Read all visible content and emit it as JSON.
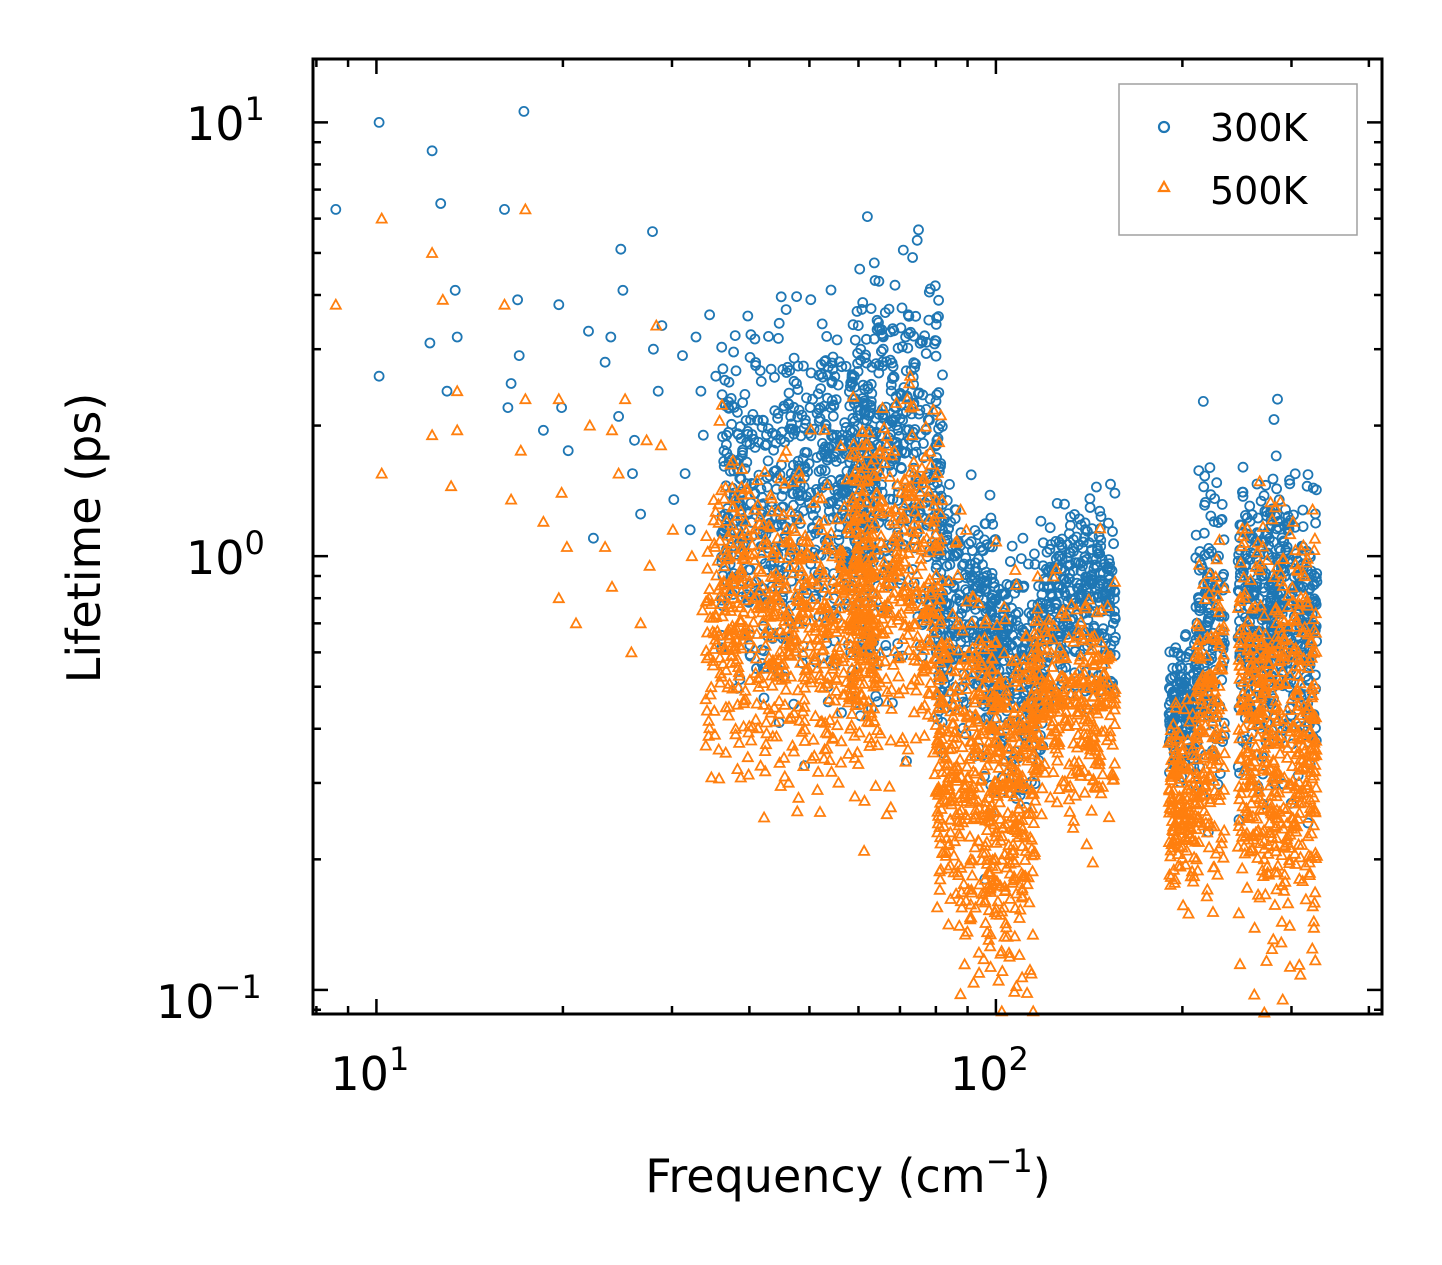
{
  "chart_data": {
    "type": "scatter",
    "title": "",
    "xlabel": "Frequency (cm",
    "xlabel_sup": "−1",
    "xlabel_end": ")",
    "ylabel": "Lifetime (ps)",
    "xscale": "log",
    "yscale": "log",
    "xlim": [
      7.9,
      420
    ],
    "ylim": [
      0.088,
      14
    ],
    "x_ticks": [
      {
        "value": 10,
        "base": "10",
        "exp": "1"
      },
      {
        "value": 100,
        "base": "10",
        "exp": "2"
      }
    ],
    "y_ticks": [
      {
        "value": 0.1,
        "base": "10",
        "exp": "−1"
      },
      {
        "value": 1,
        "base": "10",
        "exp": "0"
      },
      {
        "value": 10,
        "base": "10",
        "exp": "1"
      }
    ],
    "legend_position": "top-right",
    "series": [
      {
        "name": "300K",
        "color": "#1f77b4",
        "marker": "circle",
        "points": [
          [
            8.6,
            6.3
          ],
          [
            10.1,
            10.0
          ],
          [
            10.1,
            2.6
          ],
          [
            12.3,
            8.6
          ],
          [
            12.7,
            6.5
          ],
          [
            13.4,
            4.1
          ],
          [
            12.2,
            3.1
          ],
          [
            13.0,
            2.4
          ],
          [
            13.5,
            3.2
          ],
          [
            16.1,
            6.3
          ],
          [
            17.3,
            10.6
          ],
          [
            16.9,
            3.9
          ],
          [
            17.0,
            2.9
          ],
          [
            16.5,
            2.5
          ],
          [
            16.3,
            2.2
          ],
          [
            19.7,
            3.8
          ],
          [
            19.9,
            2.2
          ],
          [
            20.4,
            1.75
          ],
          [
            18.6,
            1.95
          ],
          [
            22.0,
            3.3
          ],
          [
            23.4,
            2.8
          ],
          [
            23.9,
            3.2
          ],
          [
            24.8,
            5.1
          ],
          [
            25.0,
            4.1
          ],
          [
            24.6,
            2.1
          ],
          [
            26.1,
            1.85
          ],
          [
            27.9,
            5.6
          ],
          [
            28.9,
            3.4
          ],
          [
            28.0,
            3.0
          ],
          [
            28.5,
            2.4
          ],
          [
            25.9,
            1.55
          ],
          [
            26.7,
            1.25
          ],
          [
            31.2,
            2.9
          ],
          [
            32.8,
            3.2
          ],
          [
            33.4,
            2.4
          ],
          [
            34.5,
            3.6
          ],
          [
            35.3,
            2.6
          ],
          [
            30.2,
            1.35
          ],
          [
            31.5,
            1.55
          ],
          [
            32.1,
            1.15
          ],
          [
            33.7,
            1.9
          ],
          [
            36.4,
            1.75
          ],
          [
            22.4,
            1.1
          ],
          [
            60.5,
            3.0
          ],
          [
            72.2,
            3.6
          ],
          [
            71.5,
            3.2
          ],
          [
            50.6,
            2.3
          ],
          [
            58.2,
            1.95
          ],
          [
            96.0,
            0.18
          ]
        ],
        "clusters": [
          {
            "x_range": [
              36,
              64
            ],
            "y_center": 1.35,
            "y_spread": 0.2,
            "count": 700
          },
          {
            "x_range": [
              58,
              82
            ],
            "y_center": 1.7,
            "y_spread": 0.22,
            "count": 420
          },
          {
            "x_range": [
              80,
              100
            ],
            "y_center": 0.72,
            "y_spread": 0.14,
            "count": 300
          },
          {
            "x_range": [
              98,
              120
            ],
            "y_center": 0.55,
            "y_spread": 0.13,
            "count": 260
          },
          {
            "x_range": [
              118,
              156
            ],
            "y_center": 0.8,
            "y_spread": 0.1,
            "count": 320
          },
          {
            "x_range": [
              190,
              212
            ],
            "y_center": 0.45,
            "y_spread": 0.08,
            "count": 160
          },
          {
            "x_range": [
              210,
              234
            ],
            "y_center": 0.7,
            "y_spread": 0.18,
            "count": 160
          },
          {
            "x_range": [
              246,
              330
            ],
            "y_center": 0.72,
            "y_spread": 0.16,
            "count": 520
          }
        ]
      },
      {
        "name": "500K",
        "color": "#ff7f0e",
        "marker": "triangle",
        "points": [
          [
            8.6,
            3.8
          ],
          [
            10.2,
            6.0
          ],
          [
            10.2,
            1.55
          ],
          [
            12.3,
            5.0
          ],
          [
            12.3,
            1.9
          ],
          [
            12.8,
            3.9
          ],
          [
            13.5,
            2.4
          ],
          [
            13.2,
            1.45
          ],
          [
            13.5,
            1.95
          ],
          [
            16.1,
            3.8
          ],
          [
            17.4,
            6.3
          ],
          [
            16.5,
            1.35
          ],
          [
            17.1,
            1.75
          ],
          [
            17.4,
            2.3
          ],
          [
            19.7,
            2.3
          ],
          [
            19.9,
            1.4
          ],
          [
            18.6,
            1.2
          ],
          [
            20.3,
            1.05
          ],
          [
            21.0,
            0.7
          ],
          [
            19.7,
            0.8
          ],
          [
            22.1,
            2.0
          ],
          [
            23.4,
            1.05
          ],
          [
            24.0,
            1.95
          ],
          [
            24.6,
            1.55
          ],
          [
            25.2,
            2.3
          ],
          [
            24.0,
            0.85
          ],
          [
            25.8,
            0.6
          ],
          [
            26.7,
            0.7
          ],
          [
            27.3,
            1.85
          ],
          [
            28.3,
            3.4
          ],
          [
            28.8,
            1.8
          ],
          [
            27.6,
            0.95
          ],
          [
            30.1,
            1.15
          ],
          [
            32.3,
            1.0
          ],
          [
            33.6,
            0.75
          ],
          [
            53.4,
            0.36
          ],
          [
            57.8,
            0.35
          ],
          [
            60.8,
            1.8
          ],
          [
            72.8,
            2.2
          ],
          [
            71.9,
            2.3
          ],
          [
            101.0,
            0.105
          ],
          [
            290.4,
            0.095
          ]
        ],
        "clusters": [
          {
            "x_range": [
              34,
              64
            ],
            "y_center": 0.72,
            "y_spread": 0.17,
            "count": 700
          },
          {
            "x_range": [
              58,
              82
            ],
            "y_center": 0.9,
            "y_spread": 0.2,
            "count": 420
          },
          {
            "x_range": [
              80,
              100
            ],
            "y_center": 0.32,
            "y_spread": 0.2,
            "count": 320
          },
          {
            "x_range": [
              96,
              116
            ],
            "y_center": 0.28,
            "y_spread": 0.22,
            "count": 300
          },
          {
            "x_range": [
              114,
              156
            ],
            "y_center": 0.45,
            "y_spread": 0.12,
            "count": 340
          },
          {
            "x_range": [
              190,
              212
            ],
            "y_center": 0.27,
            "y_spread": 0.1,
            "count": 160
          },
          {
            "x_range": [
              210,
              234
            ],
            "y_center": 0.42,
            "y_spread": 0.18,
            "count": 160
          },
          {
            "x_range": [
              246,
              330
            ],
            "y_center": 0.4,
            "y_spread": 0.24,
            "count": 560
          }
        ]
      }
    ]
  }
}
